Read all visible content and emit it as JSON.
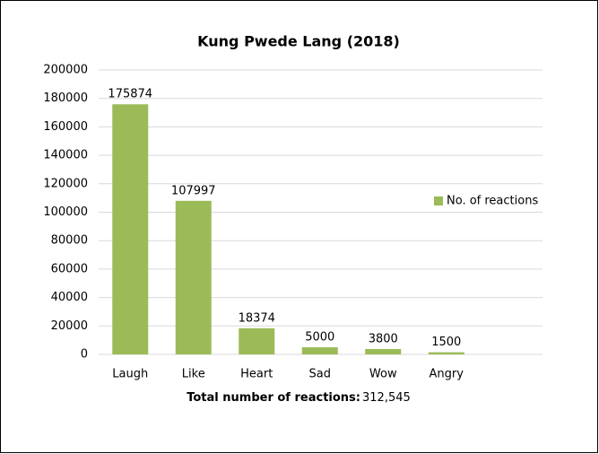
{
  "chart_data": {
    "type": "bar",
    "title": "Kung Pwede Lang (2018)",
    "categories": [
      "Laugh",
      "Like",
      "Heart",
      "Sad",
      "Wow",
      "Angry"
    ],
    "series": [
      {
        "name": "No. of reactions",
        "color": "#9bbb59",
        "values": [
          175874,
          107997,
          18374,
          5000,
          3800,
          1500
        ]
      }
    ],
    "ylim": [
      0,
      200000
    ],
    "yticks": [
      0,
      20000,
      40000,
      60000,
      80000,
      100000,
      120000,
      140000,
      160000,
      180000,
      200000
    ],
    "grid": true,
    "legend": "right",
    "xlabel": "Total number of reactions:",
    "xlabel_value": "312,545"
  }
}
